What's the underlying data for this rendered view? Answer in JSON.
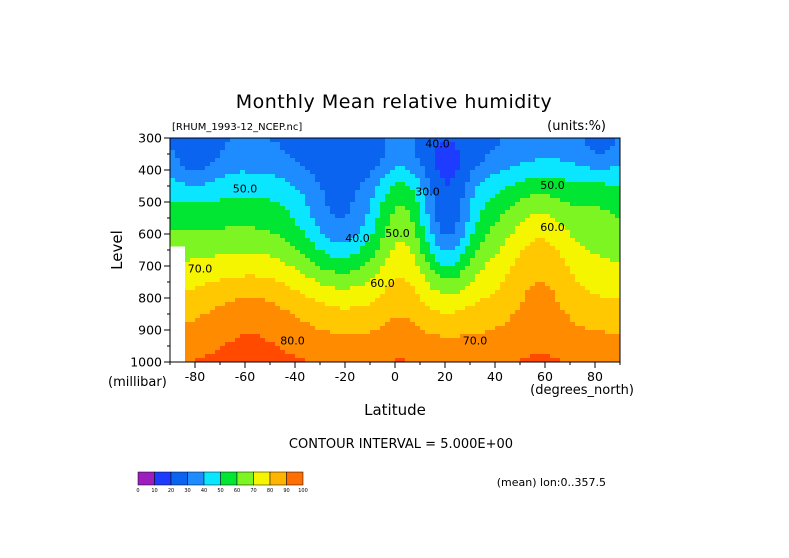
{
  "chart_data": {
    "type": "heatmap",
    "title": "Monthly Mean relative humidity",
    "subtitle_left": "[RHUM_1993-12_NCEP.nc]",
    "subtitle_right": "(units:%)",
    "xlabel": "Latitude",
    "ylabel": "Level",
    "xunit": "(degrees_north)",
    "yunit": "(millibar)",
    "xlim": [
      -90,
      90
    ],
    "ylim": [
      1000,
      300
    ],
    "x_ticks": [
      -80,
      -60,
      -40,
      -20,
      0,
      20,
      40,
      60,
      80
    ],
    "y_ticks": [
      300,
      400,
      500,
      600,
      700,
      800,
      900,
      1000
    ],
    "contour_interval_text": "CONTOUR INTERVAL = 5.000E+00",
    "footer_text": "(mean) lon:0..357.5",
    "contour_labels": [
      {
        "text": "40.0",
        "lat": 17,
        "lev": 330
      },
      {
        "text": "30.0",
        "lat": 13,
        "lev": 480
      },
      {
        "text": "50.0",
        "lat": -60,
        "lev": 470
      },
      {
        "text": "50.0",
        "lat": 63,
        "lev": 460
      },
      {
        "text": "50.0",
        "lat": 1,
        "lev": 610
      },
      {
        "text": "40.0",
        "lat": -15,
        "lev": 625
      },
      {
        "text": "60.0",
        "lat": 63,
        "lev": 590
      },
      {
        "text": "60.0",
        "lat": -5,
        "lev": 765
      },
      {
        "text": "70.0",
        "lat": -78,
        "lev": 720
      },
      {
        "text": "70.0",
        "lat": 32,
        "lev": 945
      },
      {
        "text": "80.0",
        "lat": -41,
        "lev": 945
      }
    ],
    "colorbar": {
      "labels": [
        "0",
        "10",
        "20",
        "30",
        "40",
        "50",
        "60",
        "70",
        "80",
        "90",
        "100"
      ],
      "colors": [
        "#9b1ebd",
        "#1e3cff",
        "#0a64f0",
        "#1e8cff",
        "#0ae6ff",
        "#00e632",
        "#7cf522",
        "#f5f500",
        "#ffb400",
        "#ff6e00",
        "#ff2800",
        "#e60000"
      ]
    },
    "level_colors": [
      "#7a0da8",
      "#1e3cff",
      "#0a64f0",
      "#1e8cff",
      "#0ae6ff",
      "#00e632",
      "#7cf522",
      "#f5f500",
      "#ffc800",
      "#ff8c00",
      "#ff4a00",
      "#ff0000"
    ]
  }
}
